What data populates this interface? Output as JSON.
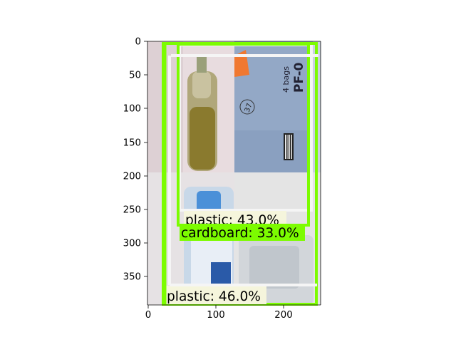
{
  "figure": {
    "image_scene": "photo collage: plastic bottle, stack of blue-grey cardboard/paper bags labeled \"4 bags PF-0\" and \"37\", blue plastic bottle, clear plastic bag"
  },
  "axes": {
    "x_ticks": [
      "0",
      "100",
      "200"
    ],
    "y_ticks": [
      "0",
      "50",
      "100",
      "150",
      "200",
      "250",
      "300",
      "350"
    ]
  },
  "detections": [
    {
      "label": "plastic: 43.0%",
      "box_color": "#f5f5f5",
      "label_bg": "#f5f5dc"
    },
    {
      "label": "cardboard: 33.0%",
      "box_color": "#7cfc00",
      "label_bg": "#7cfc00"
    },
    {
      "label": "plastic: 46.0%",
      "box_color": "#7cfc00",
      "label_bg": "#f5f5dc"
    }
  ],
  "photo_text": {
    "bag_text_1": "4 bags",
    "bag_text_2": "PF-0",
    "bag_number": "37"
  }
}
